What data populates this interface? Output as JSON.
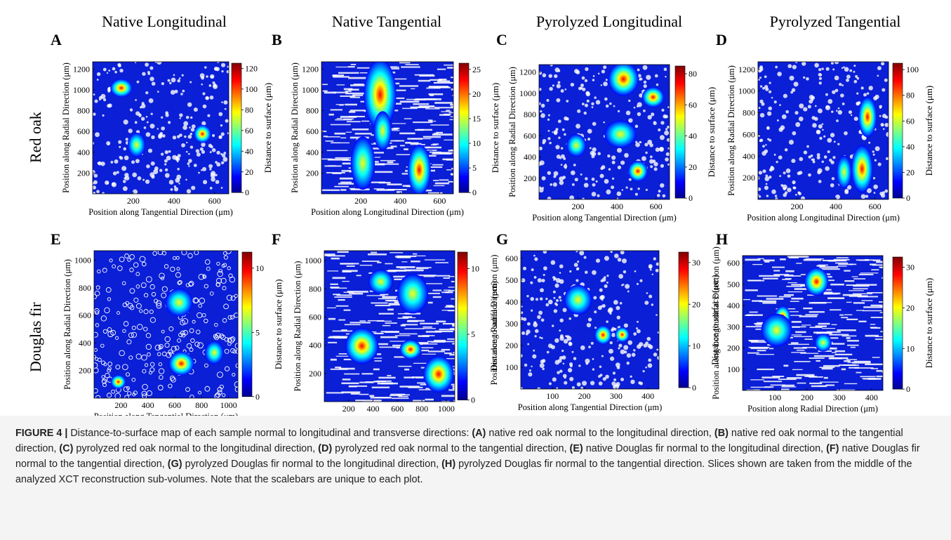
{
  "columns": [
    {
      "label": "Native Longitudinal"
    },
    {
      "label": "Native Tangential"
    },
    {
      "label": "Pyrolyzed Longitudinal"
    },
    {
      "label": "Pyrolyzed Tangential"
    }
  ],
  "rows": [
    {
      "label": "Red oak"
    },
    {
      "label": "Douglas fir"
    }
  ],
  "colorbar_label": "Distance to surface (μm)",
  "colors": {
    "low": "#00008f",
    "mid": "#00ffff",
    "high": "#ffff00",
    "max": "#800000"
  },
  "panels": [
    {
      "letter": "A",
      "xlabel": "Position along Tangential Direction (μm)",
      "ylabel": "Position along Radial Direction (μm)",
      "xticks": [
        "200",
        "400",
        "600"
      ],
      "yticks": [
        "200",
        "400",
        "600",
        "800",
        "1000",
        "1200"
      ],
      "cbticks": [
        "0",
        "20",
        "40",
        "60",
        "80",
        "100",
        "120"
      ]
    },
    {
      "letter": "B",
      "xlabel": "Position along Longitudinal Direction (μm)",
      "ylabel": "Position along Radial Direction (μm)",
      "xticks": [
        "200",
        "400",
        "600"
      ],
      "yticks": [
        "200",
        "400",
        "600",
        "800",
        "1000",
        "1200"
      ],
      "cbticks": [
        "0",
        "5",
        "10",
        "15",
        "20",
        "25"
      ]
    },
    {
      "letter": "C",
      "xlabel": "Position along Tangential Direction (μm)",
      "ylabel": "Position along Radial Direction (μm)",
      "xticks": [
        "200",
        "400",
        "600"
      ],
      "yticks": [
        "200",
        "400",
        "600",
        "800",
        "1000",
        "1200"
      ],
      "cbticks": [
        "0",
        "20",
        "40",
        "60",
        "80"
      ]
    },
    {
      "letter": "D",
      "xlabel": "Position along Longitudinal Direction (μm)",
      "ylabel": "Position along Radial Direction (μm)",
      "xticks": [
        "200",
        "400",
        "600"
      ],
      "yticks": [
        "200",
        "400",
        "600",
        "800",
        "1000",
        "1200"
      ],
      "cbticks": [
        "0",
        "20",
        "40",
        "60",
        "80",
        "100"
      ]
    },
    {
      "letter": "E",
      "xlabel": "Position along Tangential Direction (μm)",
      "ylabel": "Position along Radial Direction (μm)",
      "xticks": [
        "200",
        "400",
        "600",
        "800",
        "1000"
      ],
      "yticks": [
        "200",
        "400",
        "600",
        "800",
        "1000"
      ],
      "cbticks": [
        "0",
        "5",
        "10"
      ]
    },
    {
      "letter": "F",
      "xlabel": "Position along Longitudinal Direction (μm)",
      "ylabel": "Position along Radial Direction (μm)",
      "xticks": [
        "200",
        "400",
        "600",
        "800",
        "1000"
      ],
      "yticks": [
        "200",
        "400",
        "600",
        "800",
        "1000"
      ],
      "cbticks": [
        "0",
        "5",
        "10"
      ]
    },
    {
      "letter": "G",
      "xlabel": "Position along Tangential Direction (μm)",
      "ylabel": "Position along Radial Direction (μm)",
      "xticks": [
        "100",
        "200",
        "300",
        "400"
      ],
      "yticks": [
        "100",
        "200",
        "300",
        "400",
        "500",
        "600"
      ],
      "cbticks": [
        "0",
        "10",
        "20",
        "30"
      ]
    },
    {
      "letter": "H",
      "xlabel": "Position along Radial Direction (μm)",
      "ylabel": "Position along Longitudinal Direction (μm)",
      "xticks": [
        "100",
        "200",
        "300",
        "400"
      ],
      "yticks": [
        "100",
        "200",
        "300",
        "400",
        "500",
        "600"
      ],
      "cbticks": [
        "0",
        "10",
        "20",
        "30"
      ]
    }
  ],
  "caption": {
    "figure_label": "FIGURE 4 |",
    "intro": "Distance-to-surface map of each sample normal to longitudinal and transverse directions:",
    "items": [
      {
        "tag": "(A)",
        "text": "native red oak normal to the longitudinal direction,"
      },
      {
        "tag": "(B)",
        "text": "native red oak normal to the tangential direction,"
      },
      {
        "tag": "(C)",
        "text": "pyrolyzed red oak normal to the longitudinal direction,"
      },
      {
        "tag": "(D)",
        "text": "pyrolyzed red oak normal to the tangential direction,"
      },
      {
        "tag": "(E)",
        "text": "native Douglas fir normal to the longitudinal direction,"
      },
      {
        "tag": "(F)",
        "text": "native Douglas fir normal to the tangential direction,"
      },
      {
        "tag": "(G)",
        "text": "pyrolyzed Douglas fir normal to the longitudinal direction,"
      },
      {
        "tag": "(H)",
        "text": "pyrolyzed Douglas fir normal to the tangential direction."
      }
    ],
    "tail": "Slices shown are taken from the middle of the analyzed XCT reconstruction sub-volumes. Note that the scalebars are unique to each plot."
  }
}
